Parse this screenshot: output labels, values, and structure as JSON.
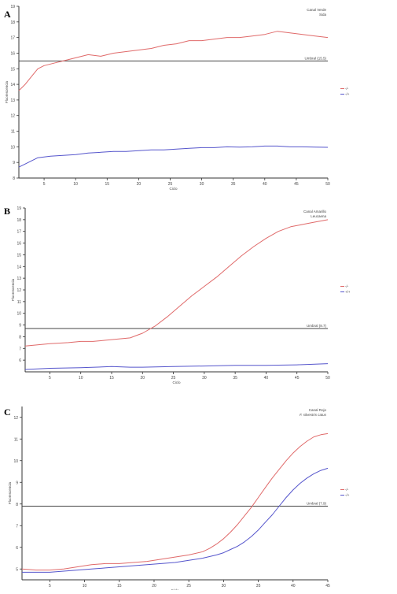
{
  "chart_data": [
    {
      "type": "line",
      "panel_label": "A",
      "channel": "Canal Verde",
      "species": "Sida",
      "xlabel": "Ciclo",
      "ylabel": "Fluorescencia",
      "xlim": [
        1,
        50
      ],
      "ylim": [
        8,
        19
      ],
      "xticks": [
        5,
        10,
        15,
        20,
        25,
        30,
        35,
        40,
        45,
        50
      ],
      "yticks": [
        8,
        9,
        10,
        11,
        12,
        13,
        14,
        15,
        16,
        17,
        18,
        19
      ],
      "threshold": {
        "value": 15.5,
        "label": "Umbral (15.5)"
      },
      "legend": {
        "position": "right",
        "entries": [
          "-/-",
          "-/+"
        ]
      },
      "grid": false,
      "series": [
        {
          "name": "-/-",
          "color": "#e06a6a",
          "x": [
            1,
            2,
            3,
            4,
            5,
            6,
            7,
            8,
            10,
            12,
            14,
            16,
            18,
            20,
            22,
            24,
            26,
            28,
            30,
            32,
            34,
            36,
            38,
            40,
            42,
            44,
            46,
            48,
            50
          ],
          "y": [
            13.6,
            14.0,
            14.5,
            15.0,
            15.2,
            15.3,
            15.4,
            15.5,
            15.7,
            15.9,
            15.8,
            16.0,
            16.1,
            16.2,
            16.3,
            16.5,
            16.6,
            16.8,
            16.8,
            16.9,
            17.0,
            17.0,
            17.1,
            17.2,
            17.4,
            17.3,
            17.2,
            17.1,
            17.0
          ]
        },
        {
          "name": "-/+",
          "color": "#5555cc",
          "x": [
            1,
            2,
            3,
            4,
            5,
            6,
            8,
            10,
            12,
            14,
            16,
            18,
            20,
            22,
            24,
            26,
            28,
            30,
            32,
            34,
            36,
            38,
            40,
            42,
            44,
            46,
            48,
            50
          ],
          "y": [
            8.7,
            8.9,
            9.1,
            9.3,
            9.35,
            9.4,
            9.45,
            9.5,
            9.6,
            9.65,
            9.7,
            9.7,
            9.75,
            9.8,
            9.8,
            9.85,
            9.9,
            9.95,
            9.95,
            10.0,
            9.98,
            10.0,
            10.05,
            10.05,
            10.0,
            10.0,
            9.98,
            9.97
          ]
        }
      ]
    },
    {
      "type": "line",
      "panel_label": "B",
      "channel": "Canal Amarillo",
      "species": "Leucaena",
      "xlabel": "Ciclo",
      "ylabel": "Fluorescencia",
      "xlim": [
        1,
        50
      ],
      "ylim": [
        5,
        19
      ],
      "xticks": [
        5,
        10,
        15,
        20,
        25,
        30,
        35,
        40,
        45,
        50
      ],
      "yticks": [
        6,
        7,
        8,
        9,
        10,
        11,
        12,
        13,
        14,
        15,
        16,
        17,
        18,
        19
      ],
      "threshold": {
        "value": 8.7,
        "label": "Umbral (8.7)"
      },
      "legend": {
        "position": "right",
        "entries": [
          "-/-",
          "+/+"
        ]
      },
      "grid": false,
      "series": [
        {
          "name": "-/-",
          "color": "#e06a6a",
          "x": [
            1,
            3,
            5,
            8,
            10,
            12,
            14,
            16,
            18,
            19,
            20,
            21,
            22,
            24,
            26,
            28,
            30,
            32,
            34,
            36,
            38,
            40,
            42,
            44,
            46,
            48,
            50
          ],
          "y": [
            7.2,
            7.3,
            7.4,
            7.5,
            7.6,
            7.6,
            7.7,
            7.8,
            7.9,
            8.1,
            8.3,
            8.6,
            8.9,
            9.7,
            10.6,
            11.5,
            12.3,
            13.1,
            14.0,
            14.9,
            15.7,
            16.4,
            17.0,
            17.4,
            17.6,
            17.8,
            18.0
          ]
        },
        {
          "name": "+/+",
          "color": "#5555cc",
          "x": [
            1,
            5,
            10,
            15,
            18,
            20,
            25,
            30,
            35,
            40,
            45,
            50
          ],
          "y": [
            5.2,
            5.3,
            5.35,
            5.45,
            5.4,
            5.4,
            5.45,
            5.5,
            5.55,
            5.55,
            5.6,
            5.7
          ]
        }
      ]
    },
    {
      "type": "line",
      "panel_label": "C",
      "channel": "Canal Rojo",
      "species": "F. silvestris catus",
      "xlabel": "Ciclo",
      "ylabel": "Fluorescencia",
      "xlim": [
        1,
        45
      ],
      "ylim": [
        4.5,
        12.5
      ],
      "xticks": [
        5,
        10,
        15,
        20,
        25,
        30,
        35,
        40,
        45
      ],
      "yticks": [
        5,
        6,
        7,
        8,
        9,
        10,
        11,
        12
      ],
      "threshold": {
        "value": 7.9,
        "label": "Umbral (7.9)"
      },
      "legend": {
        "position": "right",
        "entries": [
          "-/-",
          "-/+"
        ]
      },
      "grid": false,
      "series": [
        {
          "name": "-/-",
          "color": "#e06a6a",
          "x": [
            1,
            3,
            5,
            7,
            9,
            11,
            13,
            15,
            17,
            19,
            21,
            23,
            25,
            27,
            28,
            29,
            30,
            31,
            32,
            33,
            34,
            35,
            36,
            37,
            38,
            39,
            40,
            41,
            42,
            43,
            44,
            45
          ],
          "y": [
            5.0,
            4.95,
            4.95,
            5.0,
            5.1,
            5.2,
            5.25,
            5.25,
            5.3,
            5.35,
            5.45,
            5.55,
            5.65,
            5.8,
            5.95,
            6.15,
            6.4,
            6.7,
            7.05,
            7.45,
            7.85,
            8.3,
            8.75,
            9.2,
            9.6,
            10.0,
            10.35,
            10.65,
            10.9,
            11.1,
            11.2,
            11.25
          ]
        },
        {
          "name": "-/+",
          "color": "#5555cc",
          "x": [
            1,
            3,
            5,
            7,
            9,
            11,
            13,
            15,
            17,
            19,
            21,
            23,
            25,
            27,
            29,
            30,
            31,
            32,
            33,
            34,
            35,
            36,
            37,
            38,
            39,
            40,
            41,
            42,
            43,
            44,
            45
          ],
          "y": [
            4.85,
            4.85,
            4.85,
            4.9,
            4.95,
            5.0,
            5.05,
            5.1,
            5.15,
            5.2,
            5.25,
            5.3,
            5.4,
            5.5,
            5.65,
            5.75,
            5.9,
            6.05,
            6.25,
            6.5,
            6.8,
            7.15,
            7.5,
            7.9,
            8.3,
            8.65,
            8.95,
            9.2,
            9.4,
            9.55,
            9.65
          ]
        }
      ]
    }
  ]
}
